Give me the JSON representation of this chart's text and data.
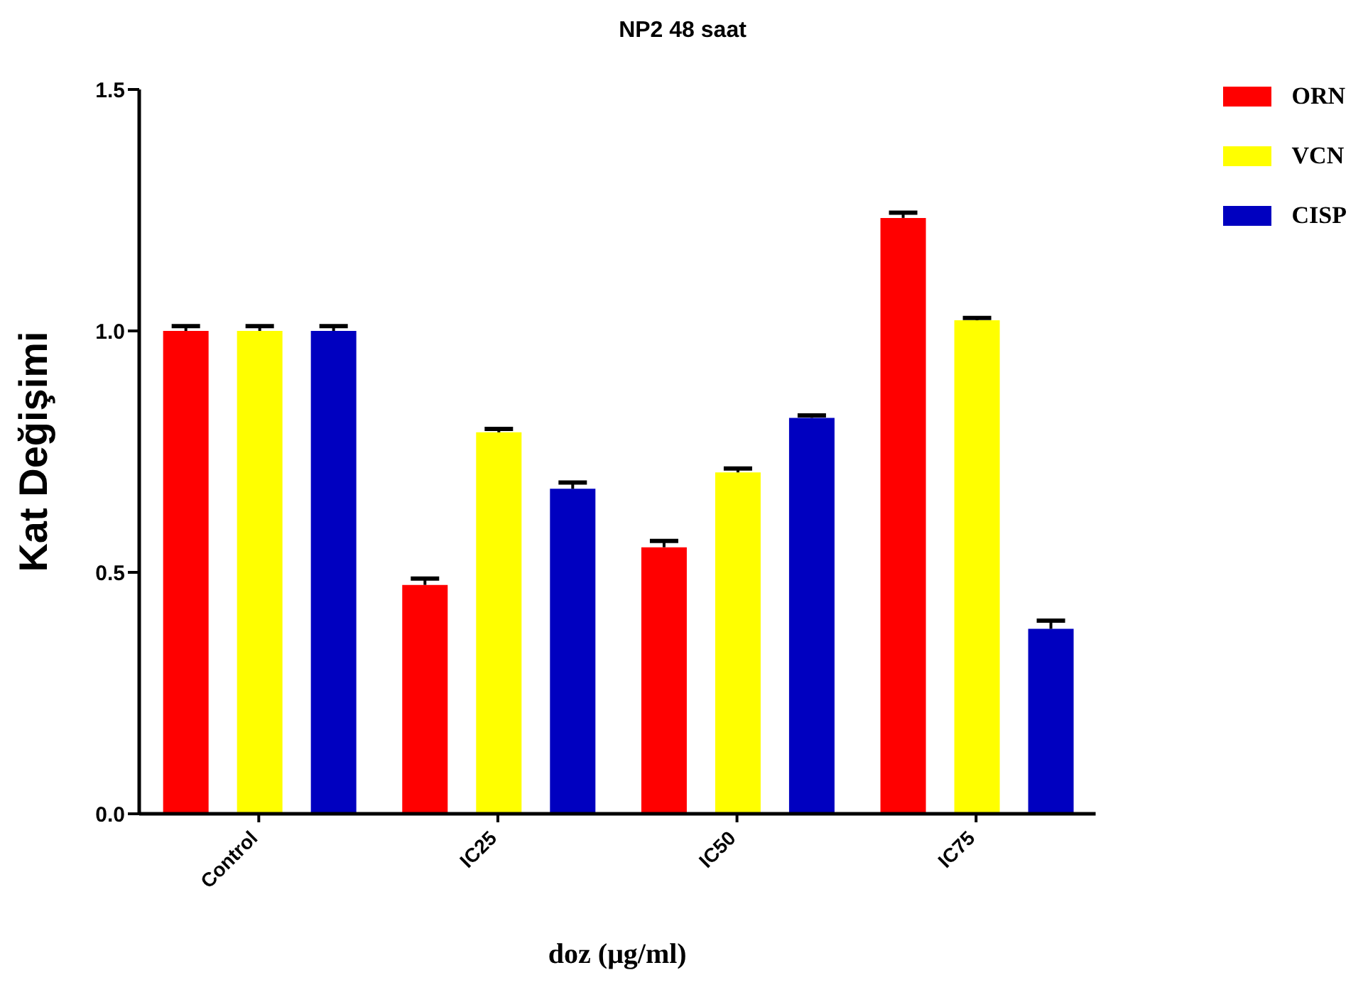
{
  "chart_data": {
    "type": "bar",
    "title": "NP2 48 saat",
    "xlabel": "doz (μg/ml)",
    "ylabel": "Kat Değişimi",
    "categories": [
      "Control",
      "IC25",
      "IC50",
      "IC75"
    ],
    "series": [
      {
        "name": "ORN",
        "color": "#ff0000",
        "values": [
          1.0,
          0.474,
          0.552,
          1.234
        ],
        "errors": [
          0.01,
          0.013,
          0.013,
          0.011
        ]
      },
      {
        "name": "VCN",
        "color": "#ffff00",
        "values": [
          1.0,
          0.79,
          0.707,
          1.022
        ],
        "errors": [
          0.01,
          0.007,
          0.008,
          0.005
        ]
      },
      {
        "name": "CISP",
        "color": "#0000c0",
        "values": [
          1.0,
          0.673,
          0.82,
          0.383
        ],
        "errors": [
          0.01,
          0.013,
          0.005,
          0.017
        ]
      }
    ],
    "ylim": [
      0,
      1.5
    ],
    "yticks": [
      {
        "value": 0,
        "label": "0.0"
      },
      0.5,
      {
        "value": 1,
        "label": "1.0"
      },
      1.5
    ],
    "grid": false,
    "legend": "top right"
  }
}
